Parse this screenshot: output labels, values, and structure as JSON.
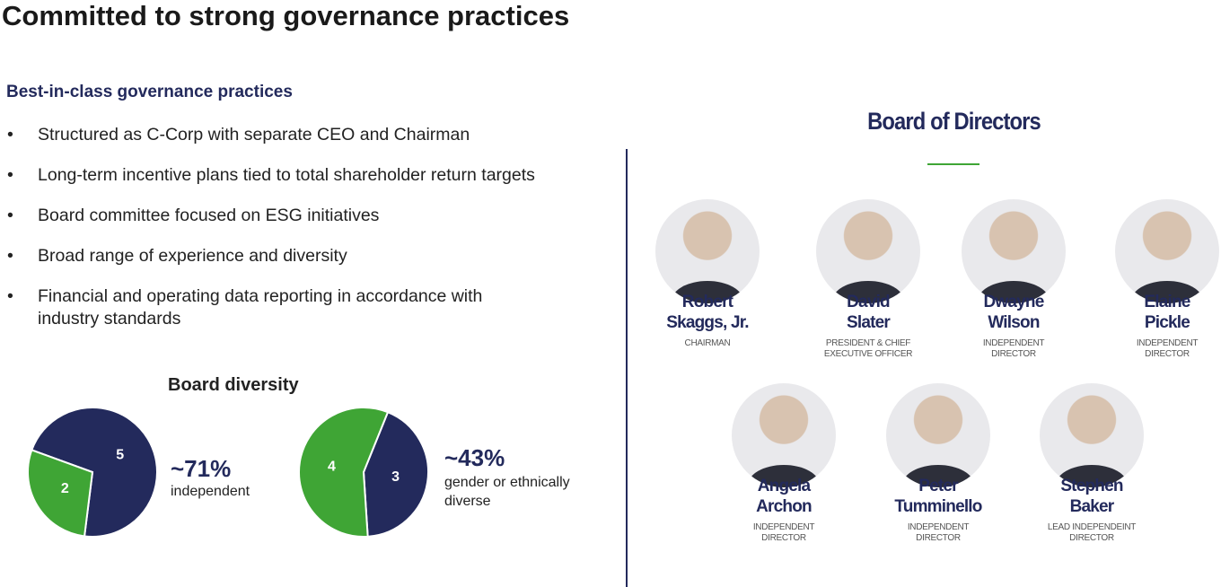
{
  "title": "Committed to strong governance practices",
  "practices": {
    "heading": "Best-in-class governance practices",
    "items": [
      "Structured as C-Corp with separate CEO and Chairman",
      "Long-term incentive plans tied to total shareholder return targets",
      "Board committee focused on ESG initiatives",
      "Broad range of experience and diversity",
      "Financial and operating data reporting in accordance with industry standards"
    ]
  },
  "diversity": {
    "title": "Board diversity",
    "charts": [
      {
        "type": "pie",
        "values": [
          5,
          2
        ],
        "colors": [
          "#232a5c",
          "#3fa535"
        ],
        "stat": "~71%",
        "caption": "independent"
      },
      {
        "type": "pie",
        "values": [
          3,
          4
        ],
        "colors": [
          "#232a5c",
          "#3fa535"
        ],
        "stat": "~43%",
        "caption": "gender or ethnically diverse"
      }
    ]
  },
  "board": {
    "title": "Board of Directors",
    "members": [
      {
        "first": "Robert",
        "last": "Skaggs, Jr.",
        "role": "CHAIRMAN"
      },
      {
        "first": "David",
        "last": "Slater",
        "role": "PRESIDENT & CHIEF EXECUTIVE OFFICER"
      },
      {
        "first": "Dwayne",
        "last": "Wilson",
        "role": "INDEPENDENT DIRECTOR"
      },
      {
        "first": "Elaine",
        "last": "Pickle",
        "role": "INDEPENDENT DIRECTOR"
      },
      {
        "first": "Angela",
        "last": "Archon",
        "role": "INDEPENDENT DIRECTOR"
      },
      {
        "first": "Peter",
        "last": "Tumminello",
        "role": "INDEPENDENT DIRECTOR"
      },
      {
        "first": "Stephen",
        "last": "Baker",
        "role": "LEAD INDEPENDEINT DIRECTOR"
      }
    ]
  }
}
